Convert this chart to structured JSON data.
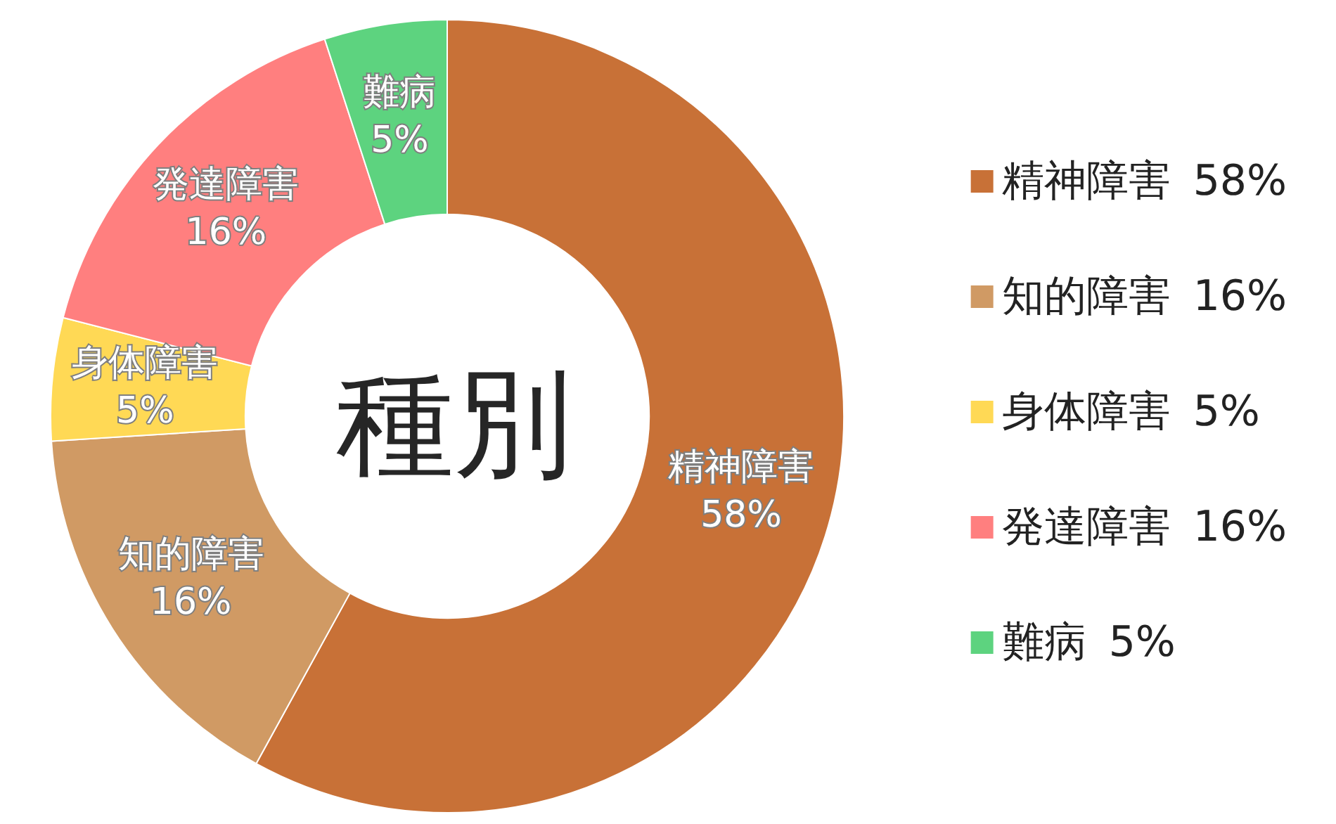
{
  "chart_data": {
    "type": "donut",
    "title": "種別",
    "categories": [
      "精神障害",
      "知的障害",
      "身体障害",
      "発達障害",
      "難病"
    ],
    "values": [
      58,
      16,
      5,
      16,
      5
    ],
    "value_labels": [
      "58%",
      "16%",
      "5%",
      "16%",
      "5%"
    ],
    "colors": [
      "#c87137",
      "#d09a64",
      "#ffd955",
      "#ff7f7f",
      "#5dd37f"
    ],
    "legend": "right"
  }
}
